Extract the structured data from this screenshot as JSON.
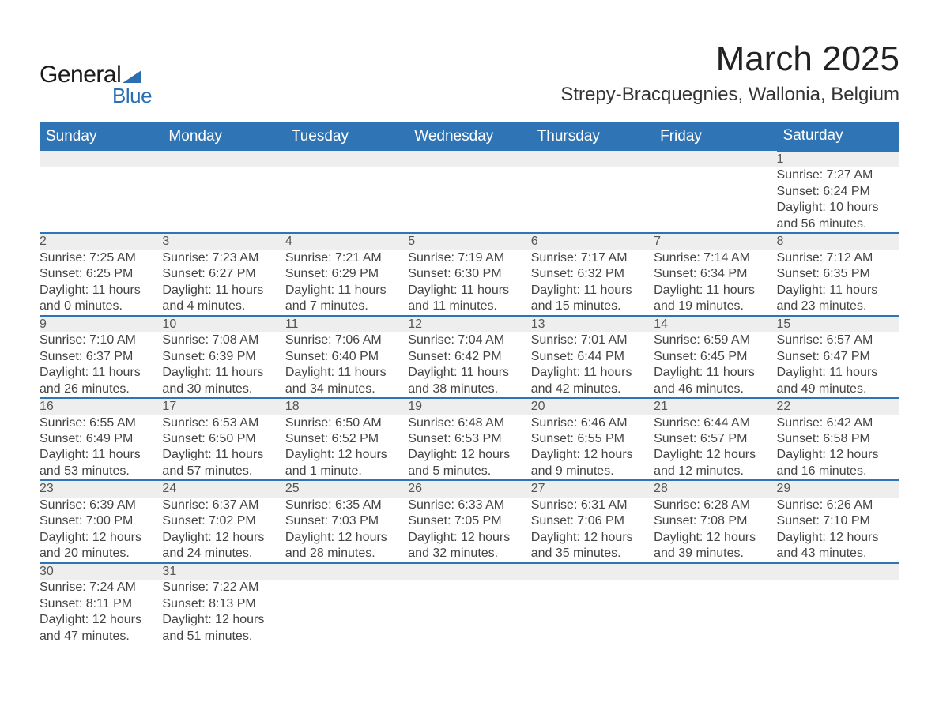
{
  "logo": {
    "line1": "General",
    "line2": "Blue"
  },
  "header": {
    "month_title": "March 2025",
    "location": "Strepy-Bracquegnies, Wallonia, Belgium"
  },
  "colors": {
    "header_bg": "#2f74b5",
    "header_text": "#ffffff",
    "daynum_bg": "#eeeeee",
    "row_border": "#2f74b5",
    "body_text": "#444444",
    "logo_blue": "#2b6fb3"
  },
  "columns": [
    "Sunday",
    "Monday",
    "Tuesday",
    "Wednesday",
    "Thursday",
    "Friday",
    "Saturday"
  ],
  "weeks": [
    [
      null,
      null,
      null,
      null,
      null,
      null,
      {
        "d": "1",
        "sr": "Sunrise: 7:27 AM",
        "ss": "Sunset: 6:24 PM",
        "dl": "Daylight: 10 hours and 56 minutes."
      }
    ],
    [
      {
        "d": "2",
        "sr": "Sunrise: 7:25 AM",
        "ss": "Sunset: 6:25 PM",
        "dl": "Daylight: 11 hours and 0 minutes."
      },
      {
        "d": "3",
        "sr": "Sunrise: 7:23 AM",
        "ss": "Sunset: 6:27 PM",
        "dl": "Daylight: 11 hours and 4 minutes."
      },
      {
        "d": "4",
        "sr": "Sunrise: 7:21 AM",
        "ss": "Sunset: 6:29 PM",
        "dl": "Daylight: 11 hours and 7 minutes."
      },
      {
        "d": "5",
        "sr": "Sunrise: 7:19 AM",
        "ss": "Sunset: 6:30 PM",
        "dl": "Daylight: 11 hours and 11 minutes."
      },
      {
        "d": "6",
        "sr": "Sunrise: 7:17 AM",
        "ss": "Sunset: 6:32 PM",
        "dl": "Daylight: 11 hours and 15 minutes."
      },
      {
        "d": "7",
        "sr": "Sunrise: 7:14 AM",
        "ss": "Sunset: 6:34 PM",
        "dl": "Daylight: 11 hours and 19 minutes."
      },
      {
        "d": "8",
        "sr": "Sunrise: 7:12 AM",
        "ss": "Sunset: 6:35 PM",
        "dl": "Daylight: 11 hours and 23 minutes."
      }
    ],
    [
      {
        "d": "9",
        "sr": "Sunrise: 7:10 AM",
        "ss": "Sunset: 6:37 PM",
        "dl": "Daylight: 11 hours and 26 minutes."
      },
      {
        "d": "10",
        "sr": "Sunrise: 7:08 AM",
        "ss": "Sunset: 6:39 PM",
        "dl": "Daylight: 11 hours and 30 minutes."
      },
      {
        "d": "11",
        "sr": "Sunrise: 7:06 AM",
        "ss": "Sunset: 6:40 PM",
        "dl": "Daylight: 11 hours and 34 minutes."
      },
      {
        "d": "12",
        "sr": "Sunrise: 7:04 AM",
        "ss": "Sunset: 6:42 PM",
        "dl": "Daylight: 11 hours and 38 minutes."
      },
      {
        "d": "13",
        "sr": "Sunrise: 7:01 AM",
        "ss": "Sunset: 6:44 PM",
        "dl": "Daylight: 11 hours and 42 minutes."
      },
      {
        "d": "14",
        "sr": "Sunrise: 6:59 AM",
        "ss": "Sunset: 6:45 PM",
        "dl": "Daylight: 11 hours and 46 minutes."
      },
      {
        "d": "15",
        "sr": "Sunrise: 6:57 AM",
        "ss": "Sunset: 6:47 PM",
        "dl": "Daylight: 11 hours and 49 minutes."
      }
    ],
    [
      {
        "d": "16",
        "sr": "Sunrise: 6:55 AM",
        "ss": "Sunset: 6:49 PM",
        "dl": "Daylight: 11 hours and 53 minutes."
      },
      {
        "d": "17",
        "sr": "Sunrise: 6:53 AM",
        "ss": "Sunset: 6:50 PM",
        "dl": "Daylight: 11 hours and 57 minutes."
      },
      {
        "d": "18",
        "sr": "Sunrise: 6:50 AM",
        "ss": "Sunset: 6:52 PM",
        "dl": "Daylight: 12 hours and 1 minute."
      },
      {
        "d": "19",
        "sr": "Sunrise: 6:48 AM",
        "ss": "Sunset: 6:53 PM",
        "dl": "Daylight: 12 hours and 5 minutes."
      },
      {
        "d": "20",
        "sr": "Sunrise: 6:46 AM",
        "ss": "Sunset: 6:55 PM",
        "dl": "Daylight: 12 hours and 9 minutes."
      },
      {
        "d": "21",
        "sr": "Sunrise: 6:44 AM",
        "ss": "Sunset: 6:57 PM",
        "dl": "Daylight: 12 hours and 12 minutes."
      },
      {
        "d": "22",
        "sr": "Sunrise: 6:42 AM",
        "ss": "Sunset: 6:58 PM",
        "dl": "Daylight: 12 hours and 16 minutes."
      }
    ],
    [
      {
        "d": "23",
        "sr": "Sunrise: 6:39 AM",
        "ss": "Sunset: 7:00 PM",
        "dl": "Daylight: 12 hours and 20 minutes."
      },
      {
        "d": "24",
        "sr": "Sunrise: 6:37 AM",
        "ss": "Sunset: 7:02 PM",
        "dl": "Daylight: 12 hours and 24 minutes."
      },
      {
        "d": "25",
        "sr": "Sunrise: 6:35 AM",
        "ss": "Sunset: 7:03 PM",
        "dl": "Daylight: 12 hours and 28 minutes."
      },
      {
        "d": "26",
        "sr": "Sunrise: 6:33 AM",
        "ss": "Sunset: 7:05 PM",
        "dl": "Daylight: 12 hours and 32 minutes."
      },
      {
        "d": "27",
        "sr": "Sunrise: 6:31 AM",
        "ss": "Sunset: 7:06 PM",
        "dl": "Daylight: 12 hours and 35 minutes."
      },
      {
        "d": "28",
        "sr": "Sunrise: 6:28 AM",
        "ss": "Sunset: 7:08 PM",
        "dl": "Daylight: 12 hours and 39 minutes."
      },
      {
        "d": "29",
        "sr": "Sunrise: 6:26 AM",
        "ss": "Sunset: 7:10 PM",
        "dl": "Daylight: 12 hours and 43 minutes."
      }
    ],
    [
      {
        "d": "30",
        "sr": "Sunrise: 7:24 AM",
        "ss": "Sunset: 8:11 PM",
        "dl": "Daylight: 12 hours and 47 minutes."
      },
      {
        "d": "31",
        "sr": "Sunrise: 7:22 AM",
        "ss": "Sunset: 8:13 PM",
        "dl": "Daylight: 12 hours and 51 minutes."
      },
      null,
      null,
      null,
      null,
      null
    ]
  ]
}
